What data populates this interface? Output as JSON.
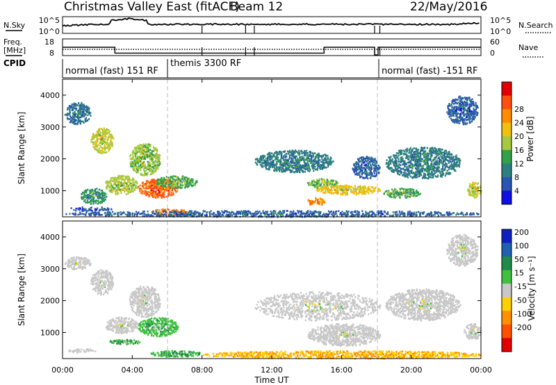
{
  "header": {
    "title": "Christmas Valley East (fitACF)",
    "beam": "Beam 12",
    "date": "22/May/2016"
  },
  "scan_panel": {
    "left_label": "N.Sky",
    "left_ticks": [
      "10^5",
      "10^0"
    ],
    "right_ticks": [
      "10^5",
      "10^0"
    ],
    "right_label": "N.Search"
  },
  "freq_panel": {
    "left_label_1": "Freq.",
    "left_label_2": "[MHz]",
    "left_ticks": [
      "18",
      "8"
    ],
    "right_ticks": [
      "60",
      "0"
    ],
    "right_label": "Nave"
  },
  "cpid_panel": {
    "label": "CPID",
    "segments": [
      {
        "label": "normal (fast) 151 RF",
        "x_start": "00:00",
        "x_end": "06:00"
      },
      {
        "label": "themis 3300 RF",
        "x_start": "06:00",
        "x_end": "18:00"
      },
      {
        "label": "normal (fast) -151 RF",
        "x_start": "18:00",
        "x_end": "24:00"
      }
    ]
  },
  "axes": {
    "ylabel": "Slant Range [km]",
    "xlabel": "Time UT",
    "yticks": [
      "1000",
      "2000",
      "3000",
      "4000"
    ],
    "xticks": [
      "00:00",
      "04:00",
      "08:00",
      "12:00",
      "16:00",
      "20:00",
      "00:00"
    ]
  },
  "power_colorbar": {
    "label": "Power [dB]",
    "ticks": [
      "4",
      "8",
      "12",
      "16",
      "20",
      "24",
      "28"
    ]
  },
  "velocity_colorbar": {
    "label": "Velocity [m s⁻¹]",
    "ticks": [
      "200",
      "100",
      "50",
      "15",
      "-15",
      "-50",
      "-100",
      "-200"
    ]
  },
  "colors": {
    "power_scale": [
      "#1010e0",
      "#2a55b0",
      "#2e7f7f",
      "#33a04a",
      "#a8c840",
      "#f0c010",
      "#ff8c00",
      "#ff5010",
      "#e00000"
    ],
    "velocity_scale": [
      "#1020c0",
      "#2060b0",
      "#1f8a4a",
      "#40c040",
      "#c8c8c8",
      "#ffd000",
      "#ff9000",
      "#ff5000",
      "#e00000"
    ],
    "grid": "#bbbbbb"
  },
  "chart_data": [
    {
      "type": "heatmap",
      "panel": "power",
      "x_unit": "hours UT",
      "y_unit": "km",
      "xlim": [
        0,
        24
      ],
      "ylim": [
        180,
        4500
      ],
      "value_unit": "dB",
      "value_range": [
        0,
        30
      ],
      "features": [
        {
          "x": [
            0.1,
            1.6
          ],
          "y": [
            3100,
            3800
          ],
          "value": 7
        },
        {
          "x": [
            1.6,
            2.9
          ],
          "y": [
            2200,
            3000
          ],
          "value": 16
        },
        {
          "x": [
            2.4,
            4.3
          ],
          "y": [
            900,
            1500
          ],
          "value": 15
        },
        {
          "x": [
            3.8,
            5.6
          ],
          "y": [
            1500,
            2500
          ],
          "value": 14
        },
        {
          "x": [
            4.3,
            6.6
          ],
          "y": [
            800,
            1400
          ],
          "value": 24
        },
        {
          "x": [
            5.3,
            7.7
          ],
          "y": [
            1100,
            1500
          ],
          "value": 12
        },
        {
          "x": [
            5.0,
            7.2
          ],
          "y": [
            250,
            450
          ],
          "value": 22
        },
        {
          "x": [
            0.3,
            2.8
          ],
          "y": [
            400,
            500
          ],
          "value": 5
        },
        {
          "x": [
            1.0,
            2.5
          ],
          "y": [
            600,
            1100
          ],
          "value": 10
        },
        {
          "x": [
            0.0,
            24.0
          ],
          "y": [
            200,
            400
          ],
          "value": 6
        },
        {
          "x": [
            11.0,
            15.5
          ],
          "y": [
            1600,
            2300
          ],
          "value": 8
        },
        {
          "x": [
            14.0,
            15.8
          ],
          "y": [
            1100,
            1400
          ],
          "value": 14
        },
        {
          "x": [
            14.5,
            18.2
          ],
          "y": [
            900,
            1200
          ],
          "value": 18
        },
        {
          "x": [
            14.0,
            15.0
          ],
          "y": [
            550,
            800
          ],
          "value": 22
        },
        {
          "x": [
            16.6,
            18.2
          ],
          "y": [
            1400,
            2100
          ],
          "value": 6
        },
        {
          "x": [
            18.3,
            20.5
          ],
          "y": [
            800,
            1100
          ],
          "value": 12
        },
        {
          "x": [
            18.5,
            22.8
          ],
          "y": [
            1400,
            2400
          ],
          "value": 8
        },
        {
          "x": [
            23.2,
            24.0
          ],
          "y": [
            800,
            1300
          ],
          "value": 16
        },
        {
          "x": [
            22.0,
            23.8
          ],
          "y": [
            3100,
            4000
          ],
          "value": 6
        }
      ]
    },
    {
      "type": "heatmap",
      "panel": "velocity",
      "x_unit": "hours UT",
      "y_unit": "km",
      "xlim": [
        0,
        24
      ],
      "ylim": [
        180,
        4500
      ],
      "value_unit": "m s^-1",
      "value_range": [
        -200,
        200
      ],
      "features": [
        {
          "x": [
            0.1,
            1.6
          ],
          "y": [
            3000,
            3400
          ],
          "value": 0
        },
        {
          "x": [
            1.6,
            2.9
          ],
          "y": [
            2200,
            3000
          ],
          "value": 0
        },
        {
          "x": [
            2.4,
            4.3
          ],
          "y": [
            1000,
            1500
          ],
          "value": 0
        },
        {
          "x": [
            3.8,
            5.6
          ],
          "y": [
            1500,
            2500
          ],
          "value": 0
        },
        {
          "x": [
            4.3,
            6.6
          ],
          "y": [
            900,
            1500
          ],
          "value": 25
        },
        {
          "x": [
            2.5,
            4.5
          ],
          "y": [
            650,
            800
          ],
          "value": 30
        },
        {
          "x": [
            5.0,
            8.0
          ],
          "y": [
            250,
            450
          ],
          "value": 30
        },
        {
          "x": [
            0.3,
            2.0
          ],
          "y": [
            400,
            500
          ],
          "value": 0
        },
        {
          "x": [
            8.0,
            24.0
          ],
          "y": [
            200,
            450
          ],
          "value": -30
        },
        {
          "x": [
            11.0,
            18.2
          ],
          "y": [
            1400,
            2300
          ],
          "value": 0
        },
        {
          "x": [
            14.0,
            18.2
          ],
          "y": [
            600,
            1300
          ],
          "value": 0
        },
        {
          "x": [
            18.5,
            22.8
          ],
          "y": [
            1400,
            2400
          ],
          "value": 0
        },
        {
          "x": [
            23.0,
            24.0
          ],
          "y": [
            800,
            1300
          ],
          "value": 0
        },
        {
          "x": [
            22.0,
            23.8
          ],
          "y": [
            3100,
            4100
          ],
          "value": 0
        }
      ]
    }
  ]
}
